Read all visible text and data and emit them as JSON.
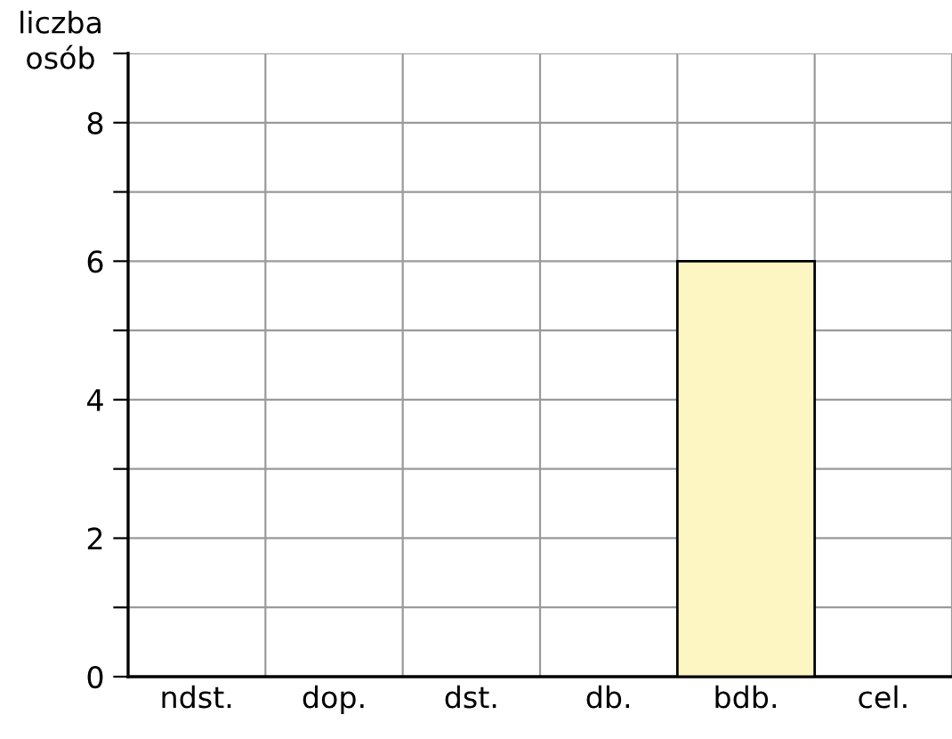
{
  "chart_data": {
    "type": "bar",
    "ylabel": "liczba\nosób",
    "categories": [
      "ndst.",
      "dop.",
      "dst.",
      "db.",
      "bdb.",
      "cel."
    ],
    "values": [
      0,
      0,
      0,
      0,
      6,
      0
    ],
    "color": "#fdf6c3",
    "ylim": [
      0,
      9
    ],
    "yticks": [
      0,
      {
        "value": 1,
        "label": null
      },
      2,
      {
        "value": 3,
        "label": null
      },
      4,
      {
        "value": 5,
        "label": null
      },
      6,
      {
        "value": 7,
        "label": null
      },
      8,
      {
        "value": 9,
        "label": null
      }
    ],
    "grid": true
  }
}
